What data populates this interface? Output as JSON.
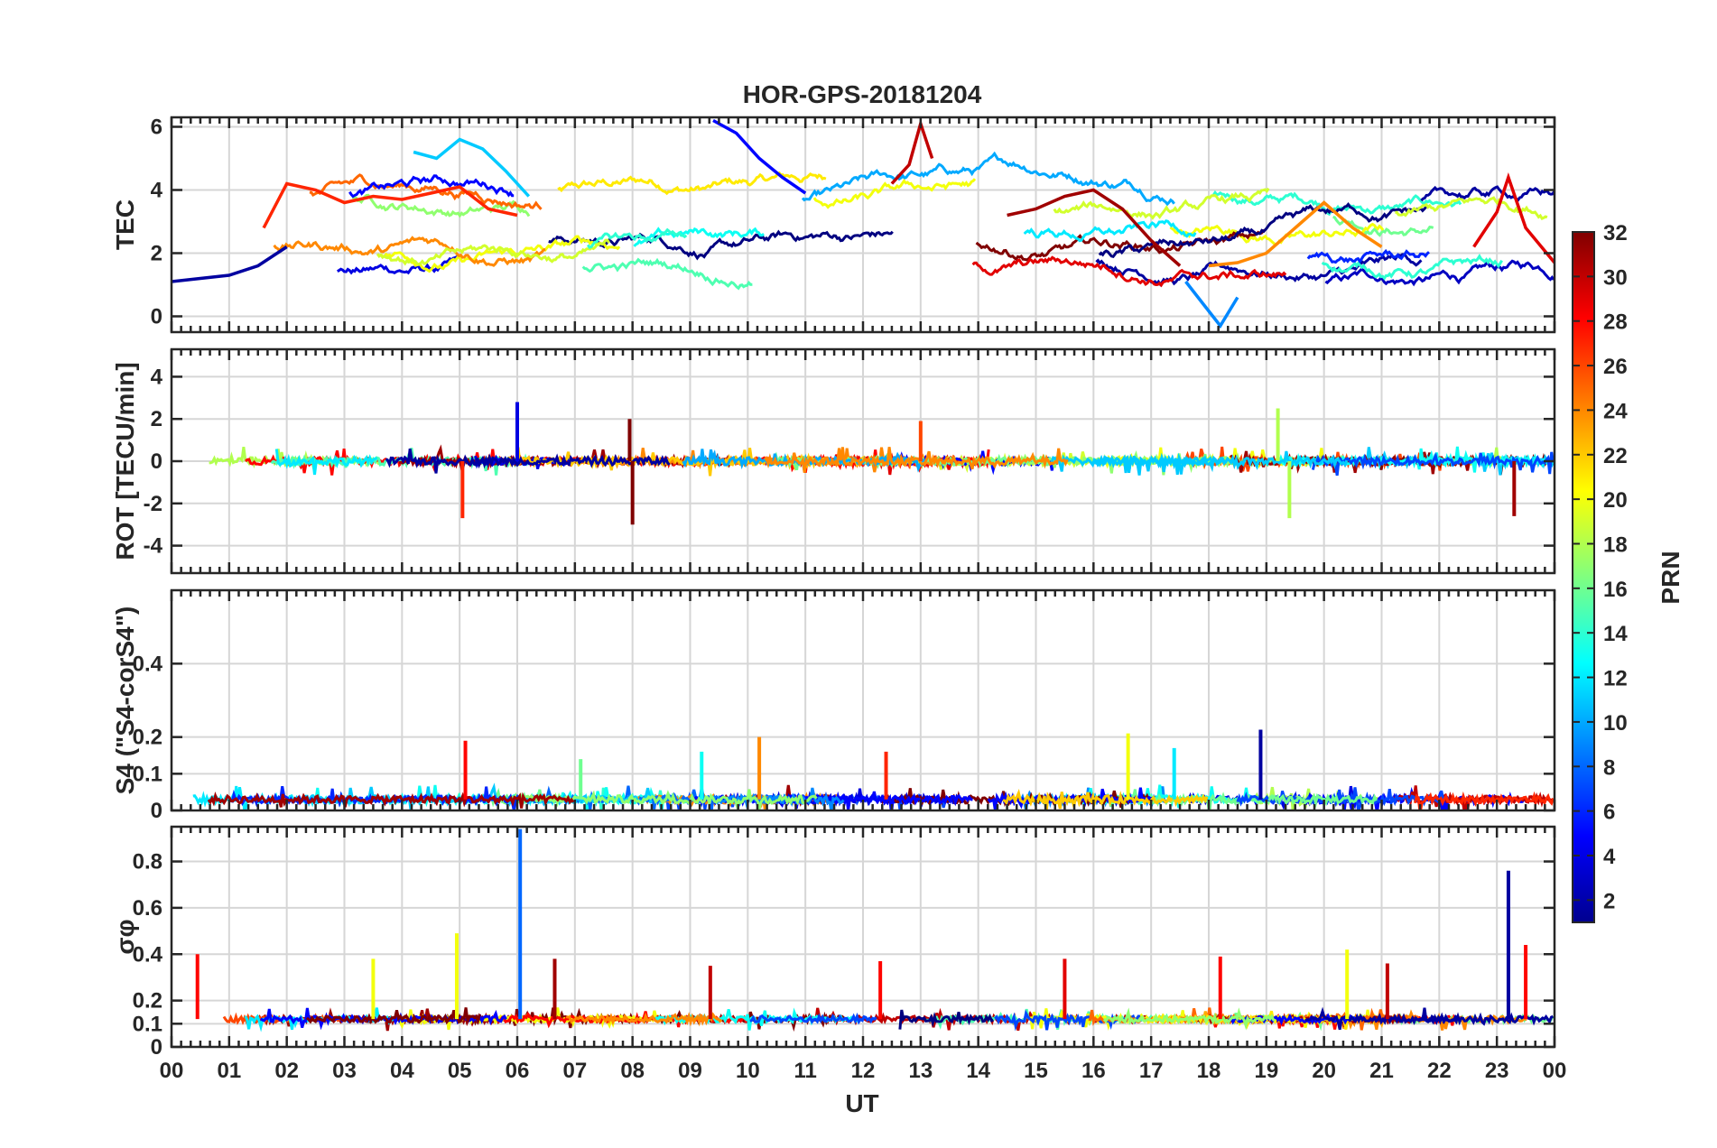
{
  "figure": {
    "title": "HOR-GPS-20181204",
    "x_axis": {
      "label": "UT",
      "tick_labels": [
        "00",
        "01",
        "02",
        "03",
        "04",
        "05",
        "06",
        "07",
        "08",
        "09",
        "10",
        "11",
        "12",
        "13",
        "14",
        "15",
        "16",
        "17",
        "18",
        "19",
        "20",
        "21",
        "22",
        "23",
        "00"
      ]
    },
    "colorbar": {
      "label": "PRN",
      "range": [
        1,
        32
      ],
      "tick_labels": [
        "2",
        "4",
        "6",
        "8",
        "10",
        "12",
        "14",
        "16",
        "18",
        "20",
        "22",
        "24",
        "26",
        "28",
        "30",
        "32"
      ],
      "colormap": "jet"
    }
  },
  "chart_data": [
    {
      "type": "line",
      "panel": "TEC",
      "ylabel": "TEC",
      "ylim": [
        -0.5,
        6.3
      ],
      "yticks": [
        0,
        2,
        4,
        6
      ],
      "ytick_labels": [
        "0",
        "2",
        "4",
        "6"
      ],
      "xlim": [
        0,
        24
      ],
      "grid": true,
      "series": [
        {
          "prn": 2,
          "x": [
            0.0,
            0.5,
            1.0,
            1.5,
            2.0
          ],
          "y": [
            1.1,
            1.2,
            1.3,
            1.6,
            2.2
          ]
        },
        {
          "prn": 5,
          "x": [
            9.4,
            9.8,
            10.2,
            10.6,
            11.0
          ],
          "y": [
            6.2,
            5.8,
            5.0,
            4.4,
            3.9
          ]
        },
        {
          "prn": 27,
          "x": [
            1.6,
            2.0,
            2.5,
            3.0,
            3.5,
            4.0,
            4.5,
            5.0,
            5.5,
            6.0
          ],
          "y": [
            2.8,
            4.2,
            4.0,
            3.6,
            3.8,
            3.7,
            3.9,
            4.1,
            3.4,
            3.2
          ]
        },
        {
          "prn": 11,
          "x": [
            4.2,
            4.6,
            5.0,
            5.4,
            5.8,
            6.2
          ],
          "y": [
            5.2,
            5.0,
            5.6,
            5.3,
            4.6,
            3.8
          ]
        },
        {
          "prn": 30,
          "x": [
            12.5,
            12.8,
            13.0,
            13.2
          ],
          "y": [
            4.2,
            4.8,
            6.1,
            5.0
          ]
        },
        {
          "prn": 31,
          "x": [
            14.5,
            15.0,
            15.5,
            16.0,
            16.5,
            17.0,
            17.5
          ],
          "y": [
            3.2,
            3.4,
            3.8,
            4.0,
            3.4,
            2.4,
            1.6
          ]
        },
        {
          "prn": 24,
          "x": [
            18.0,
            18.5,
            19.0,
            19.5,
            20.0,
            20.5,
            21.0
          ],
          "y": [
            1.6,
            1.7,
            2.0,
            2.8,
            3.6,
            2.8,
            2.2
          ]
        },
        {
          "prn": 9,
          "x": [
            17.6,
            17.9,
            18.2,
            18.5
          ],
          "y": [
            1.1,
            0.4,
            -0.3,
            0.6
          ]
        },
        {
          "prn": 29,
          "x": [
            22.6,
            23.0,
            23.2,
            23.5,
            24.0
          ],
          "y": [
            2.2,
            3.3,
            4.4,
            2.8,
            1.7
          ]
        }
      ]
    },
    {
      "type": "line",
      "panel": "ROT",
      "ylabel": "ROT [TECU/min]",
      "ylim": [
        -5.3,
        5.3
      ],
      "yticks": [
        -4,
        -2,
        0,
        2,
        4
      ],
      "ytick_labels": [
        "-4",
        "-2",
        "0",
        "2",
        "4"
      ],
      "xlim": [
        0,
        24
      ],
      "grid": true,
      "spikes": [
        {
          "prn": 27,
          "x": 5.05,
          "y": -2.7
        },
        {
          "prn": 4,
          "x": 6.0,
          "y": 2.8
        },
        {
          "prn": 32,
          "x": 8.0,
          "y": -3.0
        },
        {
          "prn": 32,
          "x": 7.95,
          "y": 2.0
        },
        {
          "prn": 26,
          "x": 13.0,
          "y": 1.9
        },
        {
          "prn": 18,
          "x": 19.2,
          "y": 2.5
        },
        {
          "prn": 18,
          "x": 19.4,
          "y": -2.7
        },
        {
          "prn": 31,
          "x": 23.3,
          "y": -2.6
        }
      ]
    },
    {
      "type": "line",
      "panel": "S4",
      "ylabel": "S4 (\"S4-corS4\")",
      "ylim": [
        0,
        0.6
      ],
      "yticks": [
        0,
        0.1,
        0.2,
        0.4
      ],
      "ytick_labels": [
        "0",
        "0.1",
        "0.2",
        "0.4"
      ],
      "xlim": [
        0,
        24
      ],
      "grid": true,
      "spikes": [
        {
          "prn": 28,
          "x": 5.1,
          "y": 0.19
        },
        {
          "prn": 24,
          "x": 10.2,
          "y": 0.2
        },
        {
          "prn": 20,
          "x": 16.6,
          "y": 0.21
        },
        {
          "prn": 2,
          "x": 18.9,
          "y": 0.22
        },
        {
          "prn": 12,
          "x": 17.4,
          "y": 0.17
        },
        {
          "prn": 13,
          "x": 9.2,
          "y": 0.16
        },
        {
          "prn": 16,
          "x": 7.1,
          "y": 0.14
        },
        {
          "prn": 27,
          "x": 12.4,
          "y": 0.16
        }
      ]
    },
    {
      "type": "line",
      "panel": "sigma_phi",
      "ylabel": "σφ",
      "ylim": [
        0,
        0.95
      ],
      "yticks": [
        0,
        0.1,
        0.2,
        0.4,
        0.6,
        0.8
      ],
      "ytick_labels": [
        "0",
        "0.1",
        "0.2",
        "0.4",
        "0.6",
        "0.8"
      ],
      "xlim": [
        0,
        24
      ],
      "grid": true,
      "spikes": [
        {
          "prn": 28,
          "x": 0.45,
          "y": 0.4
        },
        {
          "prn": 20,
          "x": 3.5,
          "y": 0.38
        },
        {
          "prn": 20,
          "x": 4.95,
          "y": 0.49
        },
        {
          "prn": 8,
          "x": 6.05,
          "y": 0.94
        },
        {
          "prn": 31,
          "x": 6.65,
          "y": 0.38
        },
        {
          "prn": 30,
          "x": 9.35,
          "y": 0.35
        },
        {
          "prn": 28,
          "x": 12.3,
          "y": 0.37
        },
        {
          "prn": 29,
          "x": 15.5,
          "y": 0.38
        },
        {
          "prn": 28,
          "x": 18.2,
          "y": 0.39
        },
        {
          "prn": 20,
          "x": 20.4,
          "y": 0.42
        },
        {
          "prn": 30,
          "x": 21.1,
          "y": 0.36
        },
        {
          "prn": 2,
          "x": 23.2,
          "y": 0.76
        },
        {
          "prn": 28,
          "x": 23.5,
          "y": 0.44
        }
      ]
    }
  ]
}
